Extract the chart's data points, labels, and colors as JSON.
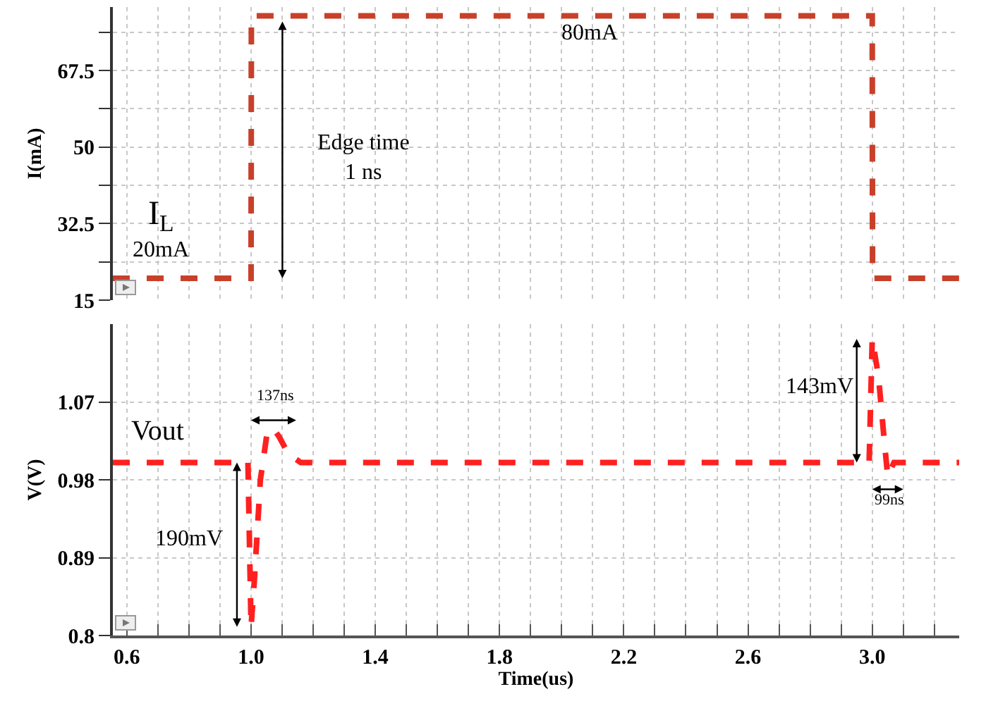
{
  "chart_data": [
    {
      "type": "line",
      "ylabel": "I(mA)",
      "xlim": [
        0.555,
        3.28
      ],
      "ylim": [
        15,
        82
      ],
      "xticks": [
        {
          "value": 0.6,
          "label": null
        },
        {
          "value": 0.7,
          "label": null
        },
        {
          "value": 0.8,
          "label": null
        },
        {
          "value": 0.9,
          "label": null
        },
        {
          "value": 1.0,
          "label": null
        },
        {
          "value": 1.1,
          "label": null
        },
        {
          "value": 1.2,
          "label": null
        },
        {
          "value": 1.3,
          "label": null
        },
        {
          "value": 1.4,
          "label": null
        },
        {
          "value": 1.5,
          "label": null
        },
        {
          "value": 1.6,
          "label": null
        },
        {
          "value": 1.7,
          "label": null
        },
        {
          "value": 1.8,
          "label": null
        },
        {
          "value": 1.9,
          "label": null
        },
        {
          "value": 2.0,
          "label": null
        },
        {
          "value": 2.1,
          "label": null
        },
        {
          "value": 2.2,
          "label": null
        },
        {
          "value": 2.3,
          "label": null
        },
        {
          "value": 2.4,
          "label": null
        },
        {
          "value": 2.5,
          "label": null
        },
        {
          "value": 2.6,
          "label": null
        },
        {
          "value": 2.7,
          "label": null
        },
        {
          "value": 2.8,
          "label": null
        },
        {
          "value": 2.9,
          "label": null
        },
        {
          "value": 3.0,
          "label": null
        },
        {
          "value": 3.1,
          "label": null
        },
        {
          "value": 3.2,
          "label": null
        }
      ],
      "yticks": [
        15,
        {
          "value": 23.75,
          "label": null
        },
        32.5,
        {
          "value": 41.25,
          "label": null
        },
        50,
        {
          "value": 58.75,
          "label": null
        },
        67.5,
        {
          "value": 76.25,
          "label": null
        }
      ],
      "tick_labels": "y",
      "grid": true,
      "marker": "none",
      "line_style": "dashed",
      "series": [
        {
          "color": "#c8402a",
          "x": [
            0.555,
            1.0,
            1.001,
            3.0,
            3.001,
            3.28
          ],
          "values": [
            20,
            20,
            80,
            80,
            20,
            20
          ]
        }
      ],
      "annotations": [
        "I$_{L}$",
        "20mA",
        "Edge time\n1 ns",
        "80mA"
      ]
    },
    {
      "type": "line",
      "xlabel": "Time(us)",
      "ylabel": "V(V)",
      "xlim": [
        0.555,
        3.28
      ],
      "ylim": [
        0.8,
        1.16
      ],
      "xticks": [
        0.6,
        {
          "value": 0.7,
          "label": null
        },
        {
          "value": 0.8,
          "label": null
        },
        {
          "value": 0.9,
          "label": null
        },
        {
          "value": 1.0,
          "label": "1.0"
        },
        {
          "value": 1.1,
          "label": null
        },
        {
          "value": 1.2,
          "label": null
        },
        {
          "value": 1.3,
          "label": null
        },
        1.4,
        {
          "value": 1.5,
          "label": null
        },
        {
          "value": 1.6,
          "label": null
        },
        {
          "value": 1.7,
          "label": null
        },
        1.8,
        {
          "value": 1.9,
          "label": null
        },
        {
          "value": 2.0,
          "label": null
        },
        {
          "value": 2.1,
          "label": null
        },
        2.2,
        {
          "value": 2.3,
          "label": null
        },
        {
          "value": 2.4,
          "label": null
        },
        {
          "value": 2.5,
          "label": null
        },
        2.6,
        {
          "value": 2.7,
          "label": null
        },
        {
          "value": 2.8,
          "label": null
        },
        {
          "value": 2.9,
          "label": null
        },
        {
          "value": 3.0,
          "label": "3.0"
        },
        {
          "value": 3.1,
          "label": null
        },
        {
          "value": 3.2,
          "label": null
        }
      ],
      "yticks": [
        0.8,
        0.89,
        0.98,
        1.07
      ],
      "grid": true,
      "marker": "none",
      "line_style": "dashed",
      "series": [
        {
          "name": "Vout",
          "color": "#ff2020",
          "x": [
            0.555,
            0.99,
            1.0,
            1.01,
            1.03,
            1.05,
            1.07,
            1.09,
            1.12,
            1.16,
            2.99,
            3.0,
            3.02,
            3.04,
            3.05,
            3.07,
            3.28
          ],
          "values": [
            1.0,
            1.0,
            0.81,
            0.86,
            0.98,
            1.03,
            1.04,
            1.03,
            1.01,
            1.0,
            1.0,
            1.143,
            1.1,
            1.02,
            0.984,
            1.0,
            1.0
          ]
        }
      ],
      "annotations": [
        "137ns",
        "190mV",
        "143mV",
        "99ns"
      ]
    }
  ]
}
